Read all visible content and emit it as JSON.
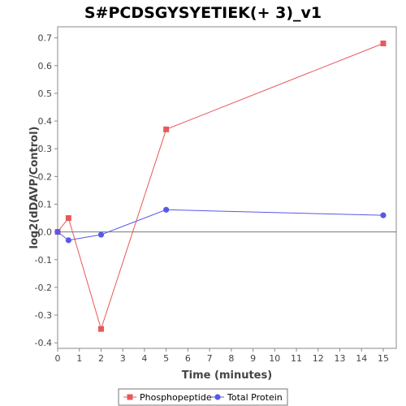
{
  "chart_data": {
    "type": "line",
    "title": "S#PCDSGYSYETIEK(+ 3)_v1",
    "xlabel": "Time (minutes)",
    "ylabel": "log2(dDAVP/Control)",
    "xlim": [
      0,
      15.6
    ],
    "ylim": [
      -0.42,
      0.74
    ],
    "xticks": [
      "0",
      "1",
      "2",
      "3",
      "4",
      "5",
      "6",
      "7",
      "8",
      "9",
      "10",
      "11",
      "12",
      "13",
      "14",
      "15"
    ],
    "yticks": [
      "-0.4",
      "-0.3",
      "-0.2",
      "-0.1",
      "0.0",
      "0.1",
      "0.2",
      "0.3",
      "0.4",
      "0.5",
      "0.6",
      "0.7"
    ],
    "grid": false,
    "zero_line": true,
    "legend_position": "bottom",
    "series": [
      {
        "name": "Phosphopeptide",
        "color": "#e8585a",
        "marker": "square",
        "x": [
          0,
          0.5,
          2,
          5,
          15
        ],
        "y": [
          0,
          0.05,
          -0.35,
          0.37,
          0.68
        ]
      },
      {
        "name": "Total Protein",
        "color": "#5858e8",
        "marker": "circle",
        "x": [
          0,
          0.5,
          2,
          5,
          15
        ],
        "y": [
          0,
          -0.03,
          -0.01,
          0.08,
          0.06
        ]
      }
    ]
  }
}
